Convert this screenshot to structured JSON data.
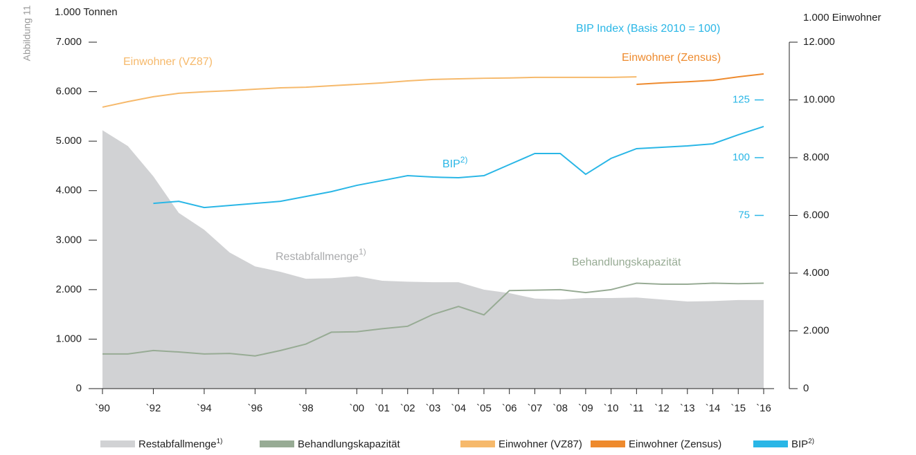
{
  "chart_data": {
    "type": "area-line",
    "figure_label": "Abbildung 11",
    "ylabel": "1.000 Tonnen",
    "y2label": "1.000 Einwohner",
    "annotations": {
      "vz87": "Einwohner (VZ87)",
      "zensus": "Einwohner (Zensus)",
      "bip_index": "BIP Index (Basis 2010 = 100)",
      "bip": "BIP",
      "bip_note": "2)",
      "rest": "Restabfallmenge",
      "rest_note": "1)",
      "kap": "Behandlungskapazität"
    },
    "x": [
      1990,
      1991,
      1992,
      1993,
      1994,
      1995,
      1996,
      1997,
      1998,
      1999,
      2000,
      2001,
      2002,
      2003,
      2004,
      2005,
      2006,
      2007,
      2008,
      2009,
      2010,
      2011,
      2012,
      2013,
      2014,
      2015,
      2016
    ],
    "xlim": [
      1990,
      2016
    ],
    "xticks": [
      {
        "value": 1990,
        "label": "`90"
      },
      {
        "value": 1992,
        "label": "`92"
      },
      {
        "value": 1994,
        "label": "`94"
      },
      {
        "value": 1996,
        "label": "`96"
      },
      {
        "value": 1998,
        "label": "`98"
      },
      {
        "value": 2000,
        "label": "`00"
      },
      {
        "value": 2001,
        "label": "`01"
      },
      {
        "value": 2002,
        "label": "`02"
      },
      {
        "value": 2003,
        "label": "`03"
      },
      {
        "value": 2004,
        "label": "`04"
      },
      {
        "value": 2005,
        "label": "`05"
      },
      {
        "value": 2006,
        "label": "`06"
      },
      {
        "value": 2007,
        "label": "`07"
      },
      {
        "value": 2008,
        "label": "`08"
      },
      {
        "value": 2009,
        "label": "`09"
      },
      {
        "value": 2010,
        "label": "`10"
      },
      {
        "value": 2011,
        "label": "`11"
      },
      {
        "value": 2012,
        "label": "`12"
      },
      {
        "value": 2013,
        "label": "`13"
      },
      {
        "value": 2014,
        "label": "`14"
      },
      {
        "value": 2015,
        "label": "`15"
      },
      {
        "value": 2016,
        "label": "`16"
      }
    ],
    "ylim": [
      0,
      7000
    ],
    "yticks": [
      0,
      {
        "value": 1000,
        "label": "1.000"
      },
      {
        "value": 2000,
        "label": "2.000"
      },
      {
        "value": 3000,
        "label": "3.000"
      },
      {
        "value": 4000,
        "label": "4.000"
      },
      {
        "value": 5000,
        "label": "5.000"
      },
      {
        "value": 6000,
        "label": "6.000"
      },
      {
        "value": 7000,
        "label": "7.000"
      }
    ],
    "y2lim": [
      0,
      12000
    ],
    "y2ticks": [
      0,
      {
        "value": 2000,
        "label": "2.000"
      },
      {
        "value": 4000,
        "label": "4.000"
      },
      {
        "value": 6000,
        "label": "6.000"
      },
      {
        "value": 8000,
        "label": "8.000"
      },
      {
        "value": 10000,
        "label": "10.000"
      },
      {
        "value": 12000,
        "label": "12.000"
      }
    ],
    "y3lim": [
      0,
      150
    ],
    "y3ticks": [
      75,
      100,
      125
    ],
    "series": [
      {
        "name": "Restabfallmenge",
        "footnote": "1)",
        "kind": "area",
        "color": "#d1d2d4",
        "values": [
          5220,
          4900,
          4290,
          3550,
          3210,
          2750,
          2470,
          2360,
          2220,
          2230,
          2270,
          2180,
          2160,
          2150,
          2150,
          2000,
          1930,
          1820,
          1800,
          1830,
          1830,
          1840,
          1800,
          1760,
          1770,
          1790,
          1790
        ]
      },
      {
        "name": "Behandlungskapazität",
        "kind": "line",
        "color": "#97ab94",
        "values": [
          700,
          700,
          770,
          740,
          700,
          710,
          660,
          770,
          900,
          1140,
          1150,
          1210,
          1260,
          1500,
          1660,
          1490,
          1980,
          1990,
          2000,
          1940,
          2000,
          2130,
          2110,
          2110,
          2130,
          2120,
          2130
        ]
      },
      {
        "name": "Einwohner (VZ87)",
        "kind": "line",
        "axis": "y2",
        "color": "#f6b96b",
        "values": [
          9750,
          9940,
          10110,
          10230,
          10280,
          10320,
          10370,
          10420,
          10440,
          10490,
          10540,
          10590,
          10660,
          10710,
          10730,
          10750,
          10760,
          10780,
          10780,
          10780,
          10780,
          10800,
          null,
          null,
          null,
          null,
          null
        ]
      },
      {
        "name": "Einwohner (Zensus)",
        "kind": "line",
        "axis": "y2",
        "color": "#ee8a2d",
        "values": [
          null,
          null,
          null,
          null,
          null,
          null,
          null,
          null,
          null,
          null,
          null,
          null,
          null,
          null,
          null,
          null,
          null,
          null,
          null,
          null,
          null,
          10540,
          10590,
          10630,
          10680,
          10800,
          10900
        ]
      },
      {
        "name": "BIP",
        "footnote": "2)",
        "kind": "line",
        "axis": "y3",
        "color": "#29b6e6",
        "values": [
          null,
          null,
          80.2,
          81.1,
          78.4,
          79.3,
          80.2,
          81.1,
          83.2,
          85.3,
          88.0,
          90.1,
          92.2,
          91.6,
          91.3,
          92.2,
          97.0,
          101.8,
          101.8,
          92.8,
          99.7,
          103.9,
          104.5,
          105.1,
          106.0,
          109.9,
          113.5
        ]
      }
    ]
  }
}
